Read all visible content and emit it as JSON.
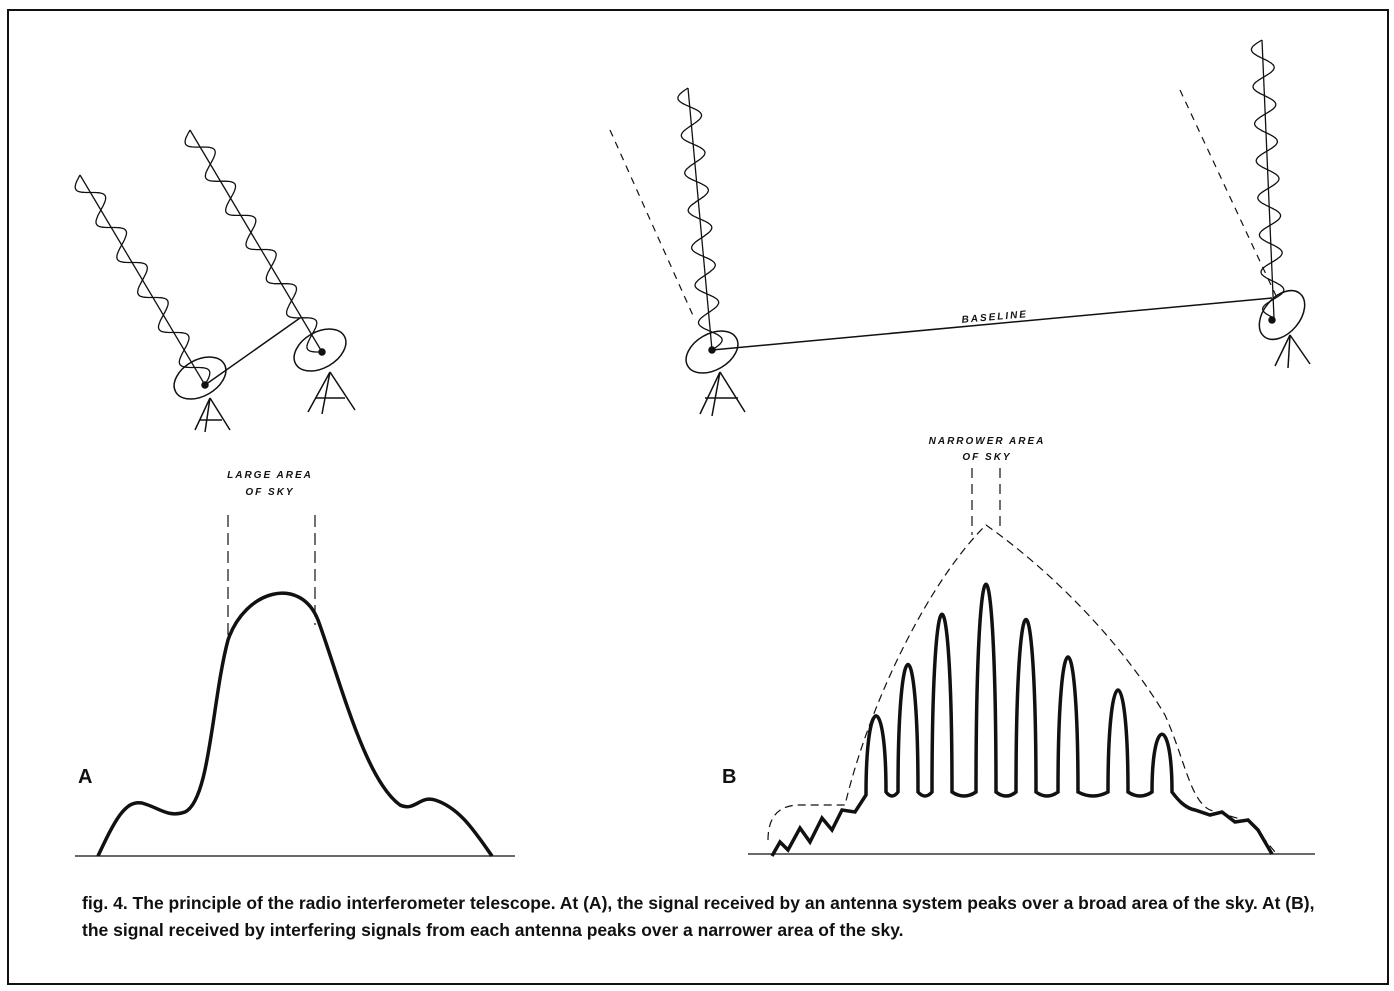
{
  "panels": [
    {
      "label": "A",
      "annotation": [
        "LARGE AREA",
        "OF SKY"
      ]
    },
    {
      "label": "B",
      "annotation": [
        "NARROWER AREA",
        "OF SKY"
      ],
      "baseline_label": "BASELINE"
    }
  ],
  "caption": "fig. 4. The principle of the radio interferometer telescope. At (A), the signal received by an antenna system peaks over a broad area of the sky. At (B), the signal received by interfering signals from each antenna peaks over a narrower area of the sky."
}
